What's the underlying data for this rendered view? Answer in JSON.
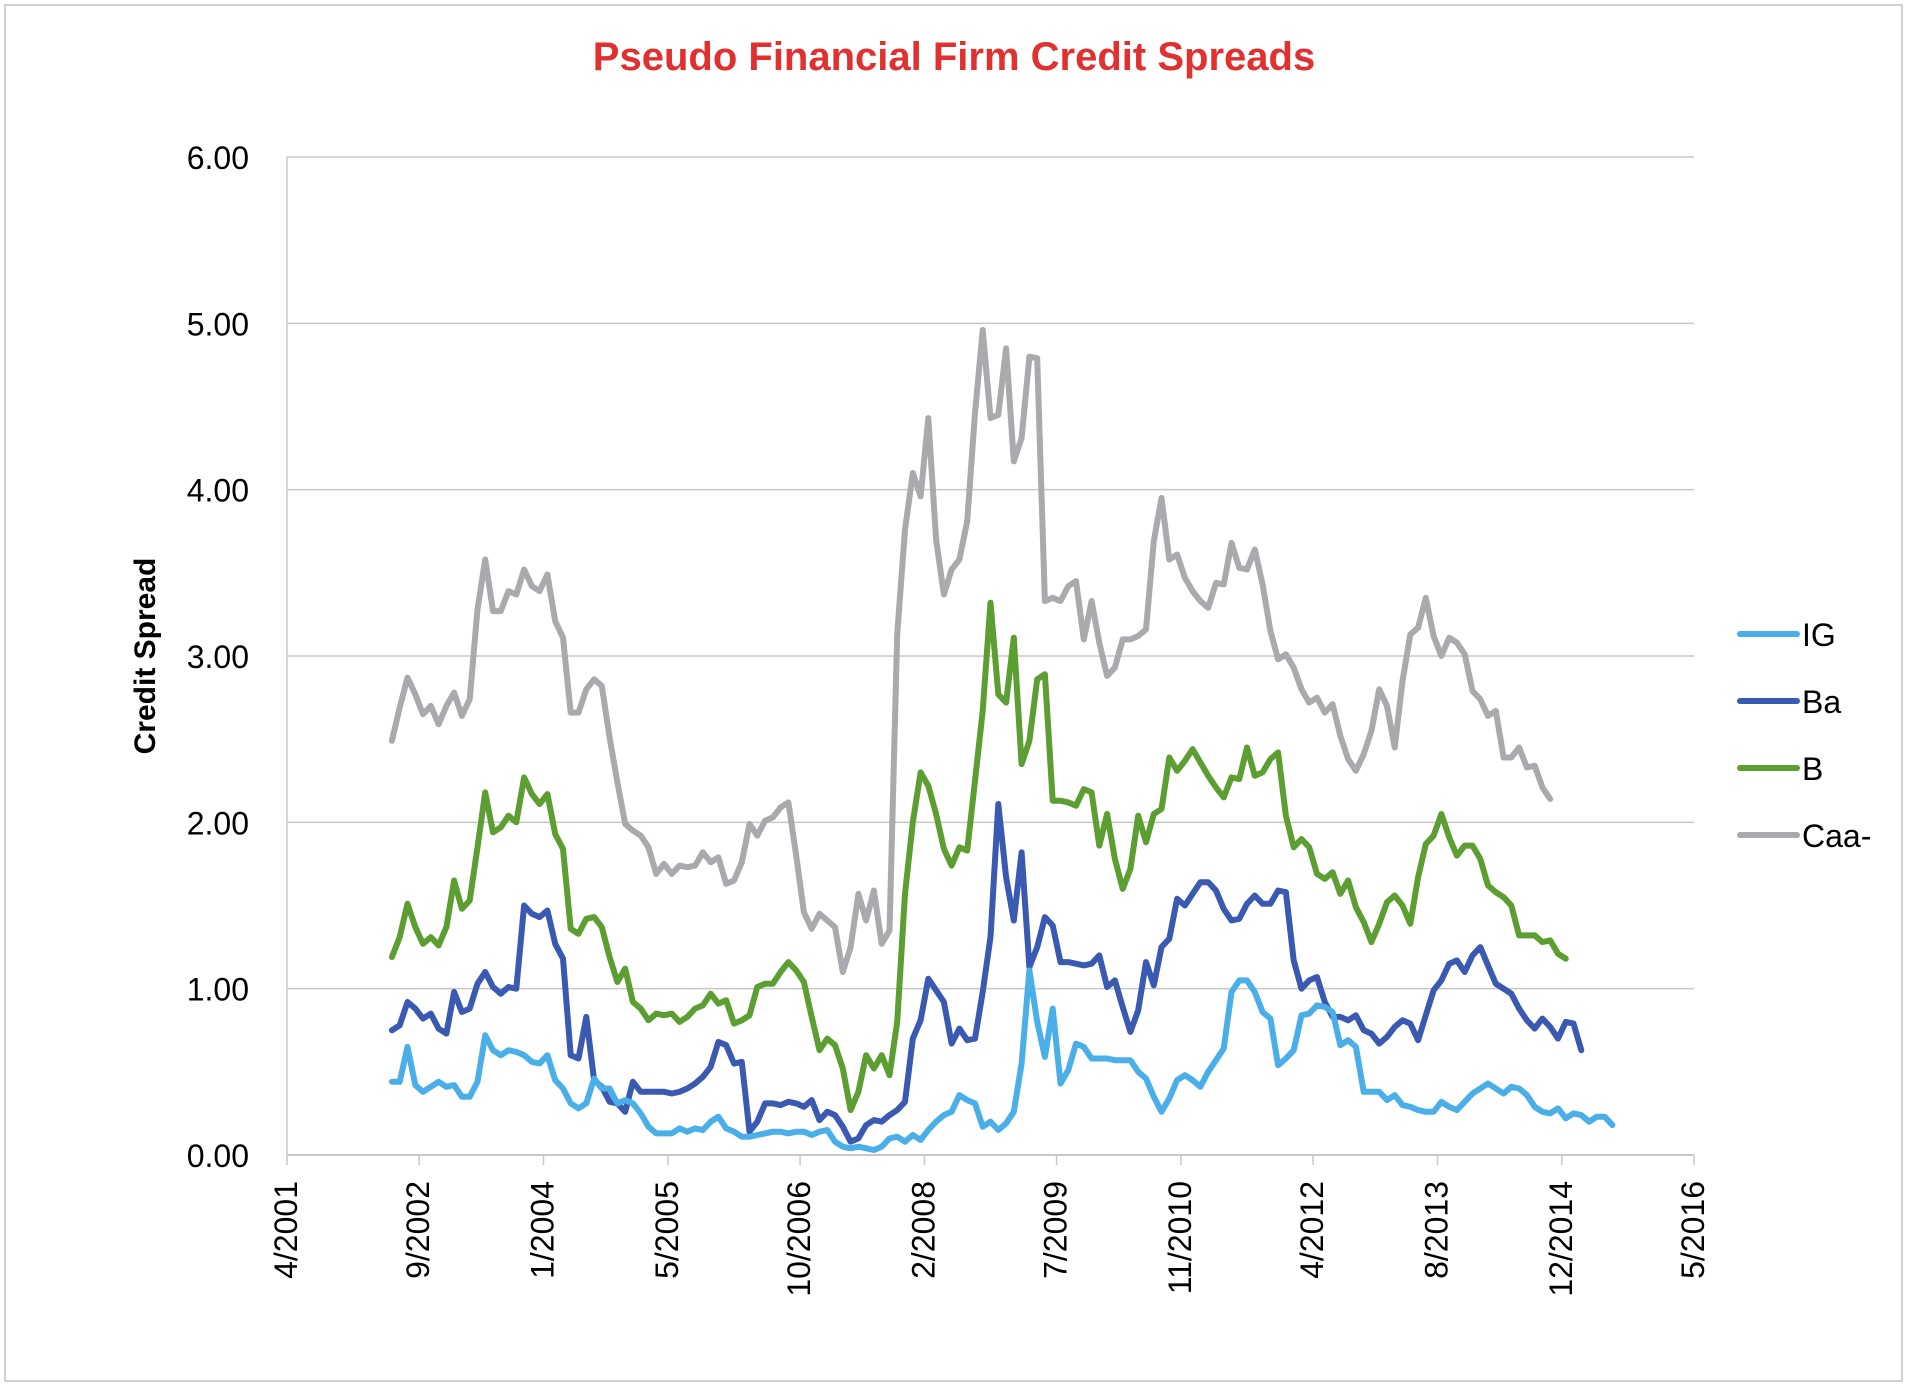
{
  "chart_data": {
    "type": "line",
    "title": "Pseudo Financial Firm Credit Spreads",
    "title_color": "#e03030",
    "xlabel": "",
    "ylabel": "Credit Spread",
    "ylim": [
      0,
      6
    ],
    "yticks": [
      "0.00",
      "1.00",
      "2.00",
      "3.00",
      "4.00",
      "5.00",
      "6.00"
    ],
    "xlim": [
      2001.25,
      2016.333
    ],
    "xticks": [
      {
        "label": "4/2001",
        "t": 2001.25
      },
      {
        "label": "9/2002",
        "t": 2002.667
      },
      {
        "label": "1/2004",
        "t": 2004.0
      },
      {
        "label": "5/2005",
        "t": 2005.333
      },
      {
        "label": "10/2006",
        "t": 2006.75
      },
      {
        "label": "2/2008",
        "t": 2008.083
      },
      {
        "label": "7/2009",
        "t": 2009.5
      },
      {
        "label": "11/2010",
        "t": 2010.833
      },
      {
        "label": "4/2012",
        "t": 2012.25
      },
      {
        "label": "8/2013",
        "t": 2013.583
      },
      {
        "label": "12/2014",
        "t": 2014.917
      },
      {
        "label": "5/2016",
        "t": 2016.333
      }
    ],
    "grid": true,
    "legend_position": "right",
    "x_start": 2002.375,
    "x_step": 0.0833333,
    "series": [
      {
        "name": "IG",
        "color": "#4aaee8",
        "values": [
          0.44,
          0.44,
          0.65,
          0.42,
          0.38,
          0.41,
          0.44,
          0.41,
          0.42,
          0.35,
          0.35,
          0.44,
          0.72,
          0.63,
          0.6,
          0.63,
          0.62,
          0.6,
          0.56,
          0.55,
          0.6,
          0.45,
          0.4,
          0.31,
          0.28,
          0.31,
          0.46,
          0.4,
          0.4,
          0.31,
          0.33,
          0.31,
          0.25,
          0.17,
          0.13,
          0.13,
          0.13,
          0.16,
          0.14,
          0.16,
          0.15,
          0.2,
          0.23,
          0.16,
          0.14,
          0.11,
          0.11,
          0.12,
          0.13,
          0.14,
          0.14,
          0.13,
          0.14,
          0.14,
          0.12,
          0.14,
          0.15,
          0.08,
          0.05,
          0.04,
          0.05,
          0.04,
          0.03,
          0.05,
          0.1,
          0.11,
          0.08,
          0.12,
          0.09,
          0.15,
          0.2,
          0.24,
          0.26,
          0.36,
          0.33,
          0.31,
          0.17,
          0.2,
          0.15,
          0.19,
          0.26,
          0.55,
          1.11,
          0.8,
          0.59,
          0.88,
          0.43,
          0.51,
          0.67,
          0.65,
          0.58,
          0.58,
          0.58,
          0.57,
          0.57,
          0.57,
          0.5,
          0.46,
          0.35,
          0.26,
          0.34,
          0.45,
          0.48,
          0.45,
          0.41,
          0.5,
          0.57,
          0.64,
          0.98,
          1.05,
          1.05,
          0.98,
          0.86,
          0.82,
          0.54,
          0.58,
          0.63,
          0.84,
          0.85,
          0.9,
          0.89,
          0.86,
          0.66,
          0.69,
          0.65,
          0.38,
          0.38,
          0.38,
          0.33,
          0.36,
          0.3,
          0.29,
          0.27,
          0.26,
          0.26,
          0.32,
          0.29,
          0.27,
          0.32,
          0.37,
          0.4,
          0.43,
          0.4,
          0.37,
          0.41,
          0.4,
          0.36,
          0.29,
          0.26,
          0.25,
          0.28,
          0.22,
          0.25,
          0.24,
          0.2,
          0.23,
          0.23,
          0.18
        ]
      },
      {
        "name": "Ba",
        "color": "#3a59b0",
        "values": [
          0.75,
          0.78,
          0.92,
          0.88,
          0.82,
          0.85,
          0.76,
          0.73,
          0.98,
          0.86,
          0.88,
          1.03,
          1.1,
          1.01,
          0.97,
          1.01,
          1.0,
          1.5,
          1.45,
          1.43,
          1.47,
          1.27,
          1.18,
          0.6,
          0.58,
          0.83,
          0.45,
          0.41,
          0.32,
          0.31,
          0.26,
          0.44,
          0.38,
          0.38,
          0.38,
          0.38,
          0.37,
          0.38,
          0.4,
          0.43,
          0.47,
          0.53,
          0.68,
          0.66,
          0.55,
          0.56,
          0.14,
          0.2,
          0.31,
          0.31,
          0.3,
          0.32,
          0.31,
          0.29,
          0.33,
          0.21,
          0.26,
          0.24,
          0.17,
          0.08,
          0.1,
          0.18,
          0.21,
          0.2,
          0.24,
          0.27,
          0.32,
          0.7,
          0.81,
          1.06,
          0.99,
          0.92,
          0.67,
          0.76,
          0.69,
          0.7,
          0.98,
          1.31,
          2.11,
          1.67,
          1.41,
          1.82,
          1.13,
          1.25,
          1.43,
          1.38,
          1.16,
          1.16,
          1.15,
          1.14,
          1.15,
          1.2,
          1.01,
          1.05,
          0.89,
          0.74,
          0.87,
          1.16,
          1.02,
          1.25,
          1.3,
          1.54,
          1.5,
          1.57,
          1.64,
          1.64,
          1.59,
          1.48,
          1.41,
          1.42,
          1.51,
          1.56,
          1.51,
          1.51,
          1.59,
          1.58,
          1.17,
          1.0,
          1.05,
          1.07,
          0.92,
          0.83,
          0.83,
          0.81,
          0.84,
          0.75,
          0.73,
          0.67,
          0.71,
          0.77,
          0.81,
          0.79,
          0.69,
          0.84,
          0.99,
          1.05,
          1.15,
          1.17,
          1.1,
          1.2,
          1.25,
          1.14,
          1.03,
          1.0,
          0.97,
          0.88,
          0.81,
          0.76,
          0.82,
          0.77,
          0.7,
          0.8,
          0.79,
          0.63
        ]
      },
      {
        "name": "B",
        "color": "#5c9e31",
        "values": [
          1.19,
          1.31,
          1.51,
          1.37,
          1.27,
          1.31,
          1.26,
          1.37,
          1.65,
          1.48,
          1.53,
          1.85,
          2.18,
          1.94,
          1.97,
          2.04,
          2.0,
          2.27,
          2.17,
          2.11,
          2.17,
          1.93,
          1.84,
          1.36,
          1.33,
          1.42,
          1.43,
          1.37,
          1.19,
          1.04,
          1.12,
          0.92,
          0.88,
          0.81,
          0.85,
          0.84,
          0.85,
          0.8,
          0.83,
          0.88,
          0.9,
          0.97,
          0.91,
          0.93,
          0.79,
          0.81,
          0.84,
          1.01,
          1.03,
          1.03,
          1.1,
          1.16,
          1.11,
          1.04,
          0.83,
          0.63,
          0.7,
          0.66,
          0.52,
          0.27,
          0.38,
          0.6,
          0.52,
          0.6,
          0.48,
          0.8,
          1.57,
          2.0,
          2.3,
          2.22,
          2.05,
          1.84,
          1.74,
          1.85,
          1.83,
          2.25,
          2.67,
          3.32,
          2.77,
          2.72,
          3.11,
          2.35,
          2.49,
          2.86,
          2.89,
          2.13,
          2.13,
          2.12,
          2.1,
          2.2,
          2.18,
          1.86,
          2.05,
          1.78,
          1.6,
          1.72,
          2.04,
          1.88,
          2.05,
          2.08,
          2.39,
          2.31,
          2.37,
          2.44,
          2.36,
          2.28,
          2.21,
          2.15,
          2.27,
          2.26,
          2.45,
          2.28,
          2.3,
          2.38,
          2.42,
          2.04,
          1.85,
          1.9,
          1.85,
          1.69,
          1.66,
          1.7,
          1.57,
          1.65,
          1.49,
          1.4,
          1.28,
          1.39,
          1.52,
          1.56,
          1.5,
          1.39,
          1.67,
          1.87,
          1.92,
          2.05,
          1.91,
          1.8,
          1.86,
          1.86,
          1.78,
          1.62,
          1.58,
          1.55,
          1.5,
          1.32,
          1.32,
          1.32,
          1.28,
          1.29,
          1.21,
          1.18
        ]
      },
      {
        "name": "Caa-",
        "color": "#a9a9ae",
        "values": [
          2.49,
          2.69,
          2.87,
          2.77,
          2.65,
          2.7,
          2.59,
          2.7,
          2.78,
          2.64,
          2.74,
          3.28,
          3.58,
          3.27,
          3.27,
          3.39,
          3.37,
          3.52,
          3.42,
          3.39,
          3.49,
          3.21,
          3.11,
          2.66,
          2.66,
          2.8,
          2.86,
          2.82,
          2.51,
          2.24,
          1.99,
          1.95,
          1.92,
          1.85,
          1.69,
          1.75,
          1.69,
          1.74,
          1.73,
          1.74,
          1.82,
          1.76,
          1.79,
          1.63,
          1.65,
          1.76,
          1.99,
          1.92,
          2.01,
          2.03,
          2.09,
          2.12,
          1.8,
          1.46,
          1.36,
          1.45,
          1.41,
          1.37,
          1.1,
          1.25,
          1.57,
          1.41,
          1.59,
          1.27,
          1.35,
          3.13,
          3.76,
          4.1,
          3.96,
          4.43,
          3.7,
          3.37,
          3.52,
          3.58,
          3.81,
          4.46,
          4.96,
          4.43,
          4.45,
          4.85,
          4.17,
          4.31,
          4.8,
          4.79,
          3.33,
          3.35,
          3.33,
          3.42,
          3.45,
          3.1,
          3.33,
          3.08,
          2.88,
          2.93,
          3.1,
          3.1,
          3.12,
          3.16,
          3.69,
          3.95,
          3.58,
          3.61,
          3.47,
          3.39,
          3.33,
          3.29,
          3.44,
          3.43,
          3.68,
          3.53,
          3.52,
          3.64,
          3.43,
          3.15,
          2.98,
          3.01,
          2.93,
          2.8,
          2.72,
          2.75,
          2.66,
          2.71,
          2.52,
          2.38,
          2.31,
          2.41,
          2.55,
          2.8,
          2.7,
          2.45,
          2.85,
          3.13,
          3.17,
          3.35,
          3.12,
          3.0,
          3.11,
          3.08,
          3.01,
          2.79,
          2.74,
          2.64,
          2.67,
          2.39,
          2.39,
          2.45,
          2.33,
          2.34,
          2.21,
          2.14
        ]
      }
    ]
  }
}
